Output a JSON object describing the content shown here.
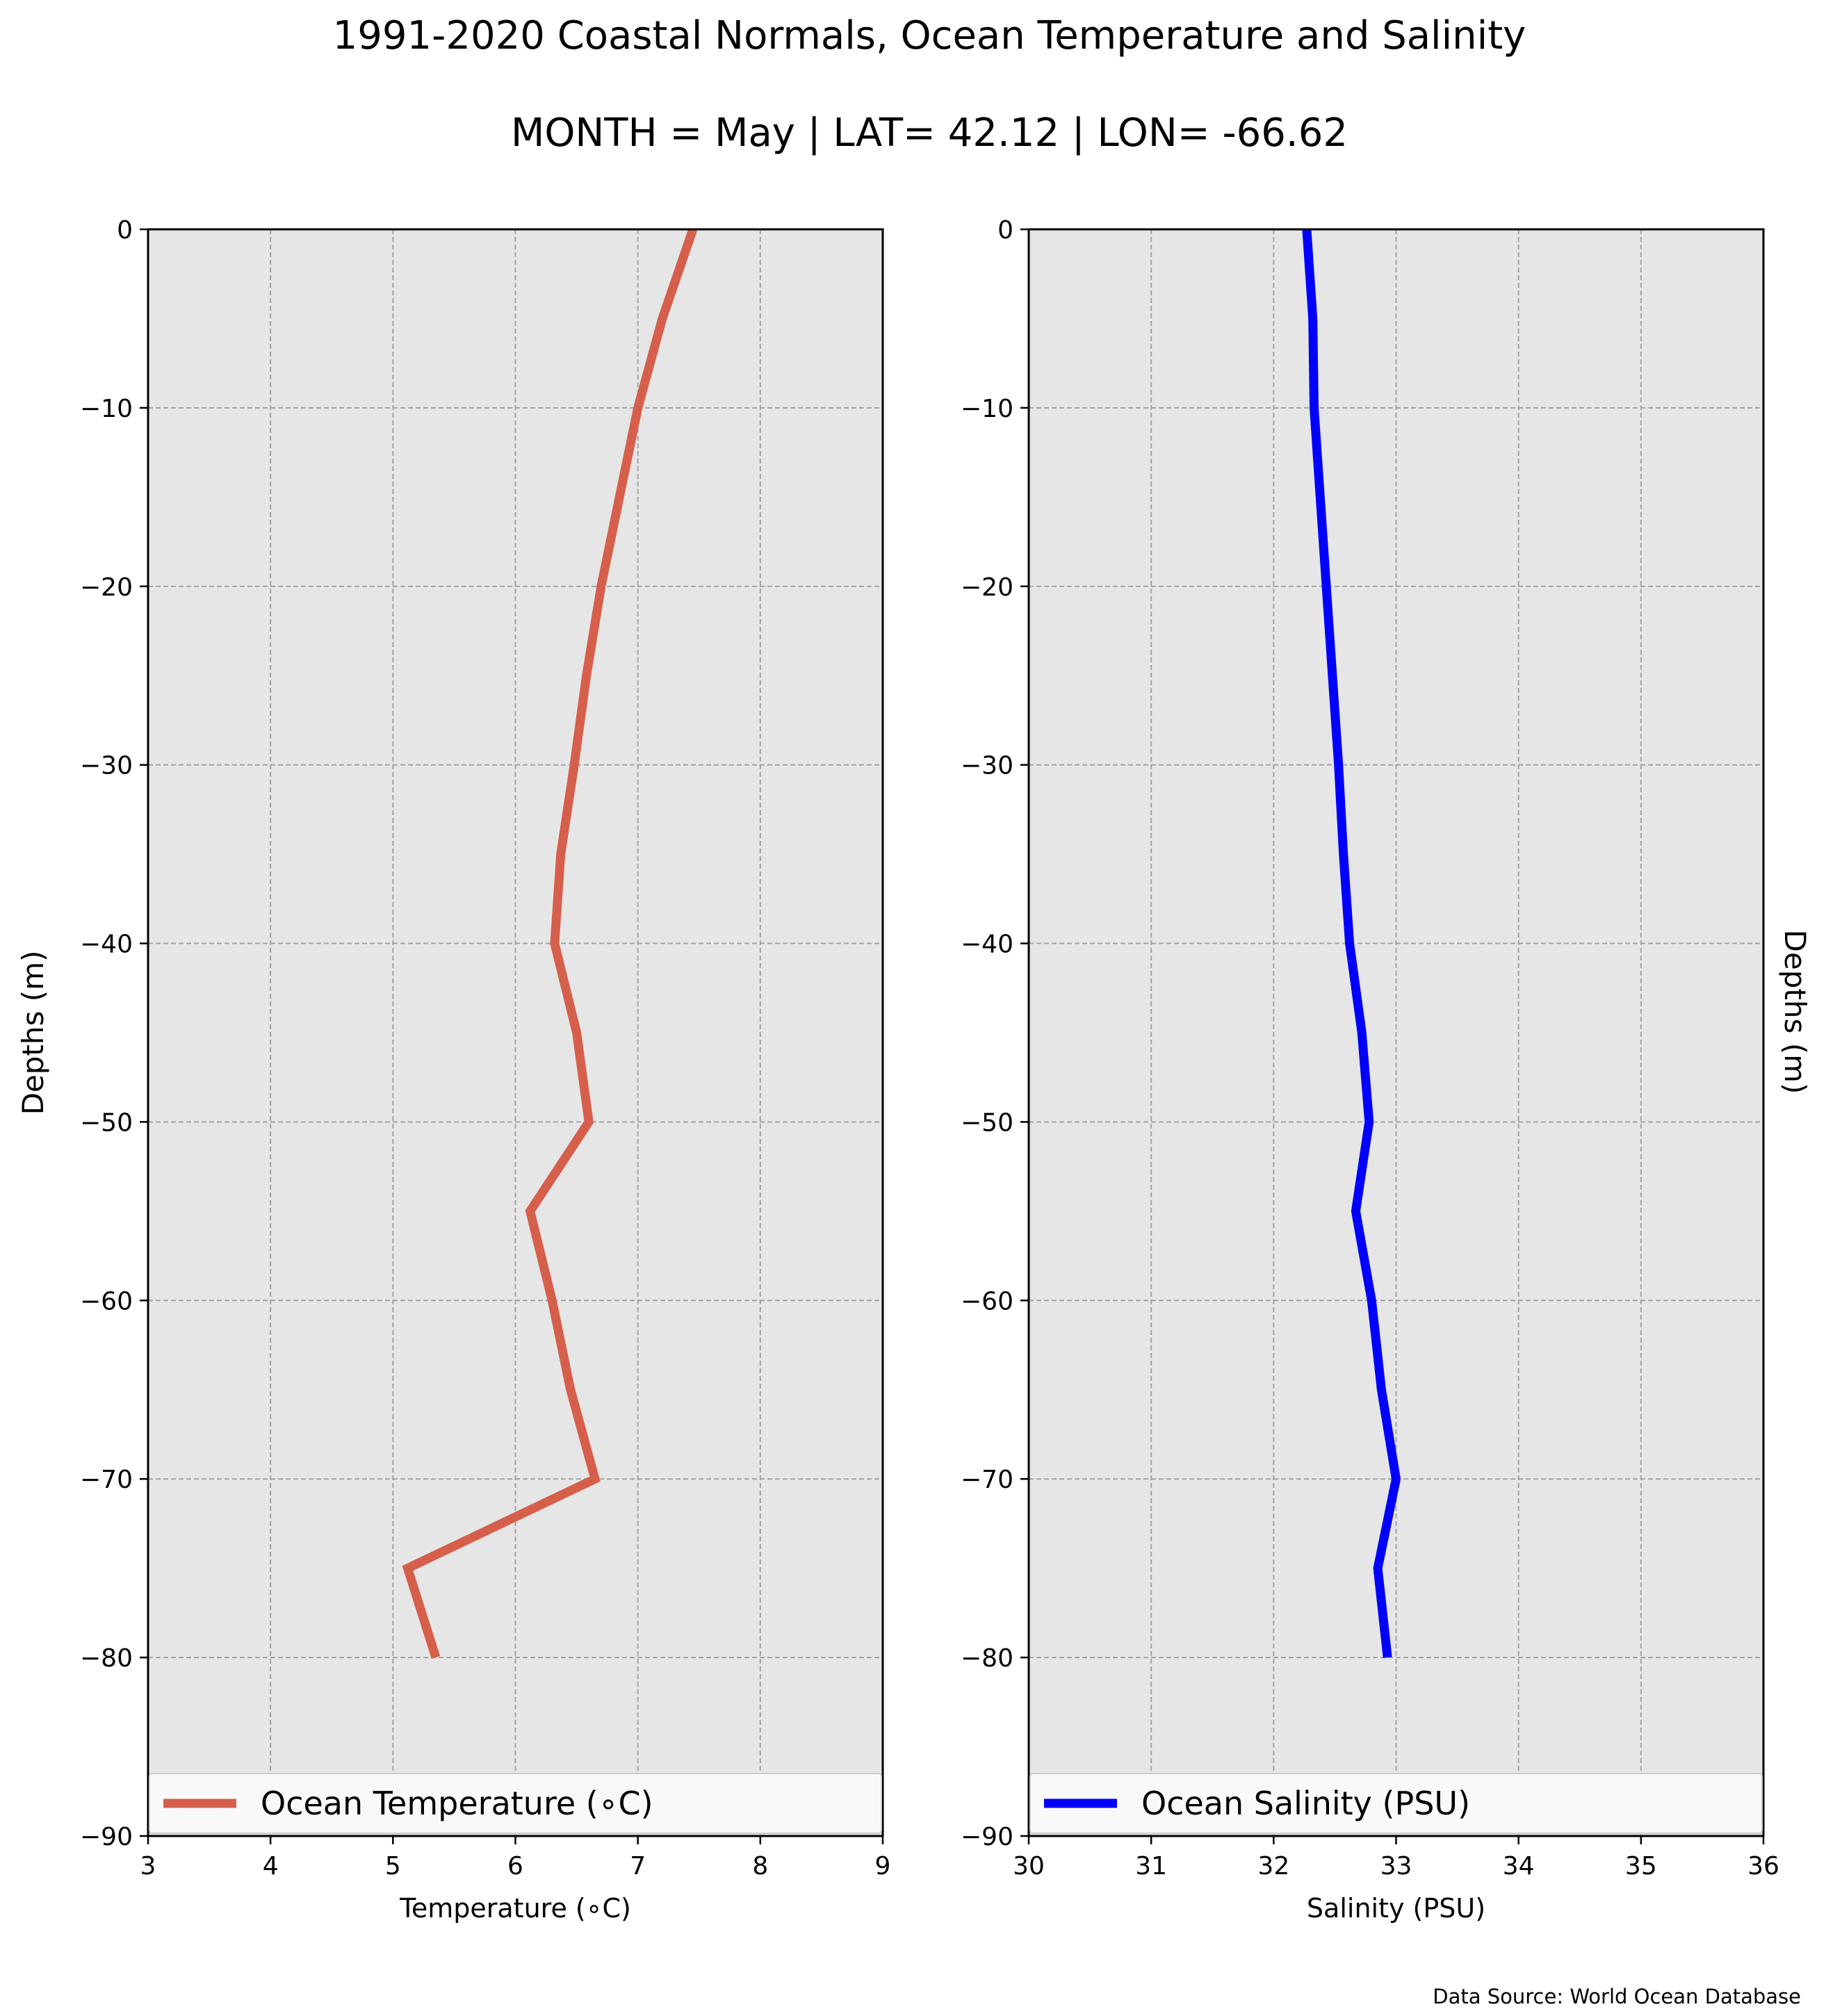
{
  "figure": {
    "title": "1991-2020 Coastal Normals, Ocean Temperature and Salinity",
    "subtitle": "MONTH = May | LAT= 42.12 | LON= -66.62",
    "source": "Data Source: World Ocean Database",
    "right_ylabel": "Depths (m)"
  },
  "chart_data": [
    {
      "type": "line",
      "xlabel": "Temperature ($^\\circ$C)",
      "xlabel_display": "Temperature (∘C)",
      "ylabel": "Depths (m)",
      "xlim": [
        3,
        9
      ],
      "ylim": [
        -90,
        0
      ],
      "xticks": [
        3,
        4,
        5,
        6,
        7,
        8,
        9
      ],
      "yticks": [
        0,
        -10,
        -20,
        -30,
        -40,
        -50,
        -60,
        -70,
        -80,
        -90
      ],
      "grid": true,
      "legend_position": "lower center",
      "series": [
        {
          "name": "Ocean Temperature (∘C)",
          "color": "#d65f4c",
          "x": [
            7.45,
            7.2,
            7.0,
            6.85,
            6.7,
            6.58,
            6.48,
            6.37,
            6.32,
            6.5,
            6.6,
            6.12,
            6.3,
            6.45,
            6.65,
            5.12,
            5.35
          ],
          "y": [
            0,
            -5,
            -10,
            -15,
            -20,
            -25,
            -30,
            -35,
            -40,
            -45,
            -50,
            -55,
            -60,
            -65,
            -70,
            -75,
            -80
          ]
        }
      ]
    },
    {
      "type": "line",
      "xlabel": "Salinity (PSU)",
      "ylabel": "",
      "xlim": [
        30,
        36
      ],
      "ylim": [
        -90,
        0
      ],
      "xticks": [
        30,
        31,
        32,
        33,
        34,
        35,
        36
      ],
      "yticks": [
        0,
        -10,
        -20,
        -30,
        -40,
        -50,
        -60,
        -70,
        -80,
        -90
      ],
      "grid": true,
      "legend_position": "lower center",
      "series": [
        {
          "name": "Ocean Salinity (PSU)",
          "color": "#0000ff",
          "x": [
            32.27,
            32.32,
            32.33,
            32.38,
            32.43,
            32.48,
            32.53,
            32.57,
            32.62,
            32.72,
            32.78,
            32.67,
            32.8,
            32.88,
            33.0,
            32.85,
            32.93
          ],
          "y": [
            0,
            -5,
            -10,
            -15,
            -20,
            -25,
            -30,
            -35,
            -40,
            -45,
            -50,
            -55,
            -60,
            -65,
            -70,
            -75,
            -80
          ]
        }
      ]
    }
  ]
}
